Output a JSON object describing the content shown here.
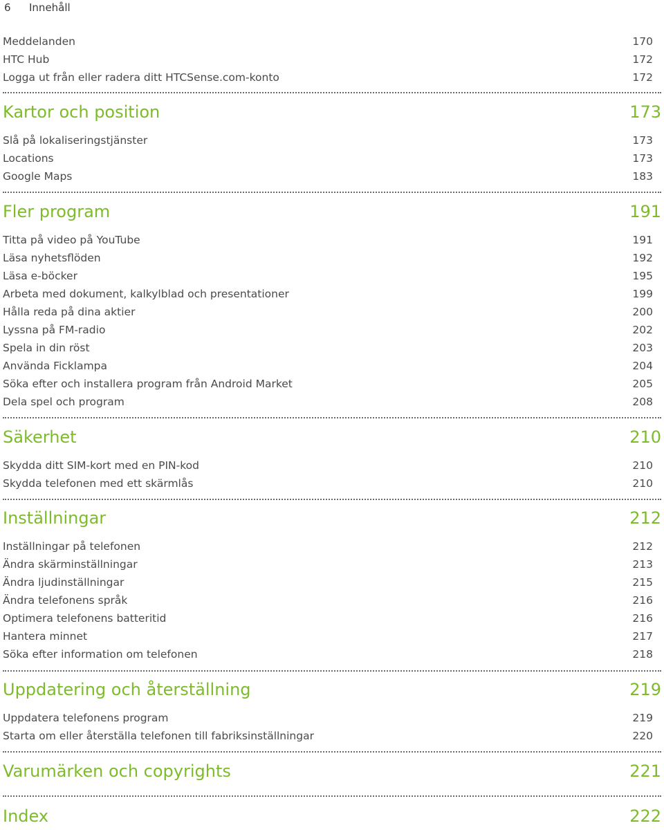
{
  "header": {
    "page_number": "6",
    "section": "Innehåll"
  },
  "toc": {
    "block0": [
      {
        "title": "Meddelanden",
        "page": "170"
      },
      {
        "title": "HTC Hub",
        "page": "172"
      },
      {
        "title": "Logga ut från eller radera ditt HTCSense.com-konto",
        "page": "172"
      }
    ],
    "ch1": {
      "title": "Kartor och position",
      "page": "173"
    },
    "block1": [
      {
        "title": "Slå på lokaliseringstjänster",
        "page": "173"
      },
      {
        "title": "Locations",
        "page": "173"
      },
      {
        "title": "Google Maps",
        "page": "183"
      }
    ],
    "ch2": {
      "title": "Fler program",
      "page": "191"
    },
    "block2": [
      {
        "title": "Titta på video på YouTube",
        "page": "191"
      },
      {
        "title": "Läsa nyhetsflöden",
        "page": "192"
      },
      {
        "title": "Läsa e-böcker",
        "page": "195"
      },
      {
        "title": "Arbeta med dokument, kalkylblad och presentationer",
        "page": "199"
      },
      {
        "title": "Hålla reda på dina aktier",
        "page": "200"
      },
      {
        "title": "Lyssna på FM-radio",
        "page": "202"
      },
      {
        "title": "Spela in din röst",
        "page": "203"
      },
      {
        "title": "Använda Ficklampa",
        "page": "204"
      },
      {
        "title": "Söka efter och installera program från Android Market",
        "page": "205"
      },
      {
        "title": "Dela spel och program",
        "page": "208"
      }
    ],
    "ch3": {
      "title": "Säkerhet",
      "page": "210"
    },
    "block3": [
      {
        "title": "Skydda ditt SIM-kort med en PIN-kod",
        "page": "210"
      },
      {
        "title": "Skydda telefonen med ett skärmlås",
        "page": "210"
      }
    ],
    "ch4": {
      "title": "Inställningar",
      "page": "212"
    },
    "block4": [
      {
        "title": "Inställningar på telefonen",
        "page": "212"
      },
      {
        "title": "Ändra skärminställningar",
        "page": "213"
      },
      {
        "title": "Ändra ljudinställningar",
        "page": "215"
      },
      {
        "title": "Ändra telefonens språk",
        "page": "216"
      },
      {
        "title": "Optimera telefonens batteritid",
        "page": "216"
      },
      {
        "title": "Hantera minnet",
        "page": "217"
      },
      {
        "title": "Söka efter information om telefonen",
        "page": "218"
      }
    ],
    "ch5": {
      "title": "Uppdatering och återställning",
      "page": "219"
    },
    "block5": [
      {
        "title": "Uppdatera telefonens program",
        "page": "219"
      },
      {
        "title": "Starta om eller återställa telefonen till fabriksinställningar",
        "page": "220"
      }
    ],
    "ch6": {
      "title": "Varumärken och copyrights",
      "page": "221"
    },
    "ch7": {
      "title": "Index",
      "page": "222"
    }
  }
}
